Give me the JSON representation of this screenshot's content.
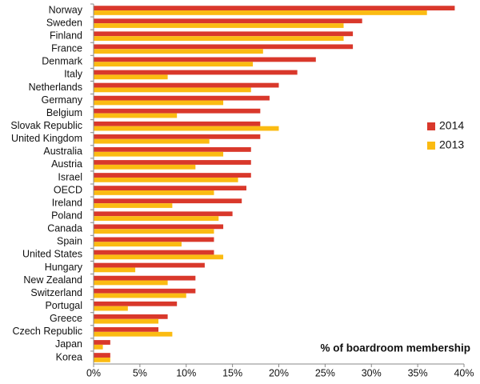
{
  "chart_data": {
    "type": "hbar",
    "x_label": "% of boardroom membership",
    "categories": [
      "Norway",
      "Sweden",
      "Finland",
      "France",
      "Denmark",
      "Italy",
      "Netherlands",
      "Germany",
      "Belgium",
      "Slovak Republic",
      "United Kingdom",
      "Australia",
      "Austria",
      "Israel",
      "OECD",
      "Ireland",
      "Poland",
      "Canada",
      "Spain",
      "United States",
      "Hungary",
      "New Zealand",
      "Switzerland",
      "Portugal",
      "Greece",
      "Czech Republic",
      "Japan",
      "Korea"
    ],
    "series": [
      {
        "name": "2014",
        "color": "#d9382b",
        "values": [
          39,
          29,
          28,
          28,
          24,
          22,
          20,
          19,
          18,
          18,
          18,
          17,
          17,
          17,
          16.5,
          16,
          15,
          14,
          13,
          13,
          12,
          11,
          11,
          9,
          8,
          7,
          1.8,
          1.8
        ]
      },
      {
        "name": "2013",
        "color": "#fbbb12",
        "values": [
          36,
          27,
          27,
          18.3,
          17.2,
          8,
          17,
          14,
          9,
          20,
          12.5,
          14,
          11,
          15.6,
          13,
          8.5,
          13.5,
          13,
          9.5,
          14,
          4.5,
          8,
          10,
          3.7,
          7,
          8.5,
          1,
          1.8
        ]
      }
    ],
    "xlim": [
      0,
      40
    ],
    "xticks": [
      {
        "value": 0,
        "label": "0%"
      },
      {
        "value": 5,
        "label": "5%"
      },
      {
        "value": 10,
        "label": "10%"
      },
      {
        "value": 15,
        "label": "15%"
      },
      {
        "value": 20,
        "label": "20%"
      },
      {
        "value": 25,
        "label": "25%"
      },
      {
        "value": 30,
        "label": "30%"
      },
      {
        "value": 35,
        "label": "35%"
      },
      {
        "value": 40,
        "label": "40%"
      }
    ],
    "grid": false,
    "legend": "right"
  }
}
